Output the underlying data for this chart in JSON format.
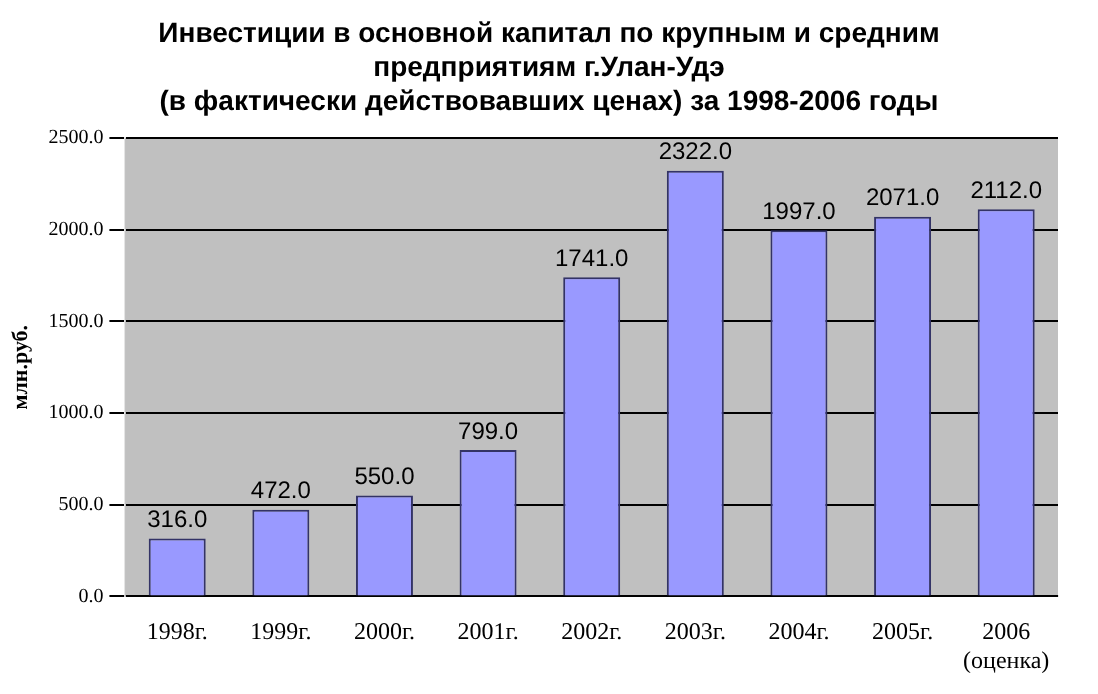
{
  "chart_data": {
    "type": "bar",
    "title": "Инвестиции в основной капитал по крупным и средним\nпредприятиям г.Улан-Удэ\n(в фактически действовавших ценах) за 1998-2006 годы",
    "ylabel": "млн.руб.",
    "categories": [
      "1998г.",
      "1999г.",
      "2000г.",
      "2001г.",
      "2002г.",
      "2003г.",
      "2004г.",
      "2005г.",
      "2006\n(оценка)"
    ],
    "values": [
      316,
      472,
      550,
      799,
      1741,
      2322,
      1997,
      2071,
      2112
    ],
    "value_labels": [
      "316.0",
      "472.0",
      "550.0",
      "799.0",
      "1741.0",
      "2322.0",
      "1997.0",
      "2071.0",
      "2112.0"
    ],
    "color": "#9999ff",
    "ylim": [
      0,
      2500
    ],
    "yticks": [
      {
        "value": 0,
        "label": "0.0"
      },
      {
        "value": 500,
        "label": "500.0"
      },
      {
        "value": 1000,
        "label": "1000.0"
      },
      {
        "value": 1500,
        "label": "1500.0"
      },
      {
        "value": 2000,
        "label": "2000.0"
      },
      {
        "value": 2500,
        "label": "2500.0"
      }
    ],
    "grid": "y",
    "legend": false
  }
}
